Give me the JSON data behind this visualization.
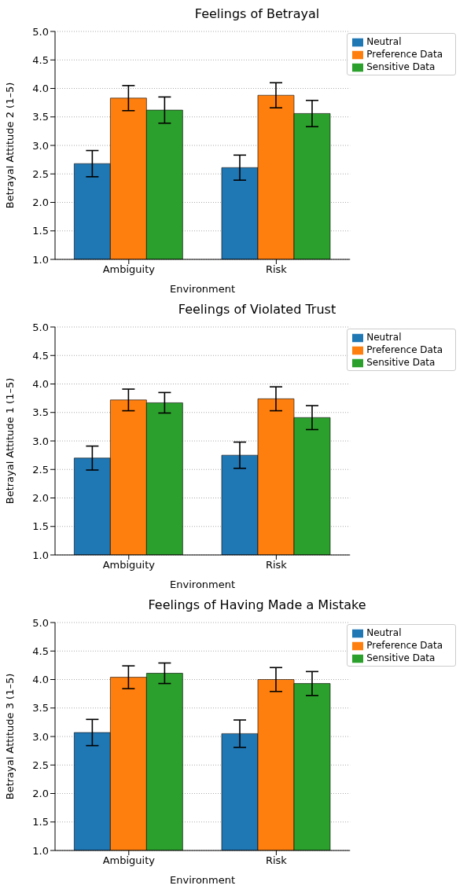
{
  "chart_data": [
    {
      "type": "bar",
      "title": "Feelings of Betrayal",
      "xlabel": "Environment",
      "ylabel": "Betrayal Attitude 2 (1–5)",
      "categories": [
        "Ambiguity",
        "Risk"
      ],
      "series": [
        {
          "name": "Neutral",
          "color": "#1f77b4",
          "values": [
            2.68,
            2.61
          ],
          "errors": [
            0.23,
            0.22
          ]
        },
        {
          "name": "Preference Data",
          "color": "#ff7f0e",
          "values": [
            3.83,
            3.88
          ],
          "errors": [
            0.22,
            0.22
          ]
        },
        {
          "name": "Sensitive Data",
          "color": "#2ca02c",
          "values": [
            3.62,
            3.56
          ],
          "errors": [
            0.23,
            0.23
          ]
        }
      ],
      "ylim": [
        1,
        5
      ],
      "yticks": [
        {
          "value": 1,
          "label": "1.0"
        },
        {
          "value": 1.5,
          "label": "1.5"
        },
        {
          "value": 2,
          "label": "2.0"
        },
        {
          "value": 2.5,
          "label": "2.5"
        },
        {
          "value": 3,
          "label": "3.0"
        },
        {
          "value": 3.5,
          "label": "3.5"
        },
        {
          "value": 4,
          "label": "4.0"
        },
        {
          "value": 4.5,
          "label": "4.5"
        },
        {
          "value": 5,
          "label": "5.0"
        }
      ],
      "grid": "y",
      "legend": "top right"
    },
    {
      "type": "bar",
      "title": "Feelings of Violated Trust",
      "xlabel": "Environment",
      "ylabel": "Betrayal Attitude 1 (1–5)",
      "categories": [
        "Ambiguity",
        "Risk"
      ],
      "series": [
        {
          "name": "Neutral",
          "color": "#1f77b4",
          "values": [
            2.7,
            2.75
          ],
          "errors": [
            0.21,
            0.23
          ]
        },
        {
          "name": "Preference Data",
          "color": "#ff7f0e",
          "values": [
            3.72,
            3.74
          ],
          "errors": [
            0.19,
            0.21
          ]
        },
        {
          "name": "Sensitive Data",
          "color": "#2ca02c",
          "values": [
            3.67,
            3.41
          ],
          "errors": [
            0.18,
            0.21
          ]
        }
      ],
      "ylim": [
        1,
        5
      ],
      "yticks": [
        {
          "value": 1,
          "label": "1.0"
        },
        {
          "value": 1.5,
          "label": "1.5"
        },
        {
          "value": 2,
          "label": "2.0"
        },
        {
          "value": 2.5,
          "label": "2.5"
        },
        {
          "value": 3,
          "label": "3.0"
        },
        {
          "value": 3.5,
          "label": "3.5"
        },
        {
          "value": 4,
          "label": "4.0"
        },
        {
          "value": 4.5,
          "label": "4.5"
        },
        {
          "value": 5,
          "label": "5.0"
        }
      ],
      "grid": "y",
      "legend": "top right"
    },
    {
      "type": "bar",
      "title": "Feelings of Having Made a Mistake",
      "xlabel": "Environment",
      "ylabel": "Betrayal Attitude 3 (1–5)",
      "categories": [
        "Ambiguity",
        "Risk"
      ],
      "series": [
        {
          "name": "Neutral",
          "color": "#1f77b4",
          "values": [
            3.07,
            3.05
          ],
          "errors": [
            0.23,
            0.24
          ]
        },
        {
          "name": "Preference Data",
          "color": "#ff7f0e",
          "values": [
            4.04,
            4.0
          ],
          "errors": [
            0.2,
            0.21
          ]
        },
        {
          "name": "Sensitive Data",
          "color": "#2ca02c",
          "values": [
            4.11,
            3.93
          ],
          "errors": [
            0.18,
            0.21
          ]
        }
      ],
      "ylim": [
        1,
        5
      ],
      "yticks": [
        {
          "value": 1,
          "label": "1.0"
        },
        {
          "value": 1.5,
          "label": "1.5"
        },
        {
          "value": 2,
          "label": "2.0"
        },
        {
          "value": 2.5,
          "label": "2.5"
        },
        {
          "value": 3,
          "label": "3.0"
        },
        {
          "value": 3.5,
          "label": "3.5"
        },
        {
          "value": 4,
          "label": "4.0"
        },
        {
          "value": 4.5,
          "label": "4.5"
        },
        {
          "value": 5,
          "label": "5.0"
        }
      ],
      "grid": "y",
      "legend": "top right"
    }
  ]
}
